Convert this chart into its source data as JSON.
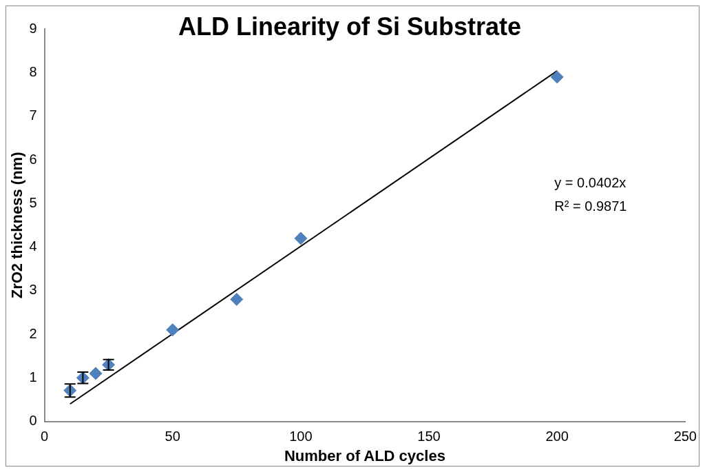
{
  "chart_data": {
    "type": "scatter",
    "title": "ALD Linearity of Si Substrate",
    "xlabel": "Number of ALD cycles",
    "ylabel": "ZrO2 thickness (nm)",
    "x": [
      10,
      15,
      20,
      25,
      50,
      75,
      100,
      200
    ],
    "series": [
      {
        "color": "#4f81bd",
        "marker": "diamond",
        "values": [
          0.71,
          1.0,
          1.1,
          1.3,
          2.1,
          2.8,
          4.2,
          7.9
        ],
        "errors": [
          0.15,
          0.13,
          null,
          0.12,
          null,
          null,
          null,
          null
        ]
      },
      {
        "type": "line",
        "color": "#000000",
        "marker": "none",
        "x": [
          10,
          200
        ],
        "values": [
          0.4,
          8.04
        ]
      }
    ],
    "grid": false,
    "legend": false,
    "xlim": [
      0,
      250
    ],
    "xticks": [
      0,
      50,
      100,
      150,
      200,
      250
    ],
    "ylim": [
      0,
      9
    ],
    "yticks": [
      0,
      1,
      2,
      3,
      4,
      5,
      6,
      7,
      8,
      9
    ],
    "annotations": [
      "y = 0.0402x",
      "R² = 0.9871"
    ]
  }
}
